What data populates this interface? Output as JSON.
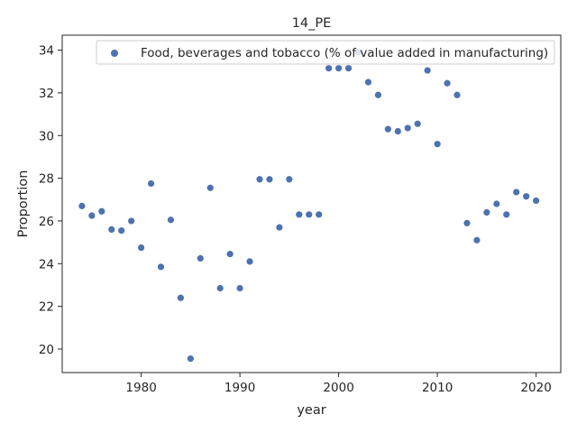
{
  "chart_data": {
    "type": "scatter",
    "title": "14_PE",
    "xlabel": "year",
    "ylabel": "Proportion",
    "xlim": [
      1972,
      2022.5
    ],
    "ylim": [
      18.9,
      34.7
    ],
    "xticks": [
      1980,
      1990,
      2000,
      2010,
      2020
    ],
    "yticks": [
      20,
      22,
      24,
      26,
      28,
      30,
      32,
      34
    ],
    "grid": false,
    "legend_position": "top-right",
    "series": [
      {
        "name": "Food, beverages and tobacco (% of value added in manufacturing)",
        "color": "#4c72b0",
        "x": [
          1974,
          1975,
          1976,
          1977,
          1978,
          1979,
          1980,
          1981,
          1982,
          1983,
          1984,
          1985,
          1986,
          1987,
          1988,
          1989,
          1990,
          1991,
          1992,
          1993,
          1994,
          1995,
          1996,
          1997,
          1998,
          1999,
          2000,
          2001,
          2002,
          2003,
          2004,
          2005,
          2006,
          2007,
          2008,
          2009,
          2010,
          2011,
          2012,
          2013,
          2014,
          2015,
          2016,
          2017,
          2018,
          2019,
          2020
        ],
        "y": [
          26.7,
          26.25,
          26.45,
          25.6,
          25.55,
          26.0,
          24.75,
          27.75,
          23.85,
          26.05,
          22.4,
          19.55,
          24.25,
          27.55,
          22.85,
          24.45,
          22.85,
          24.1,
          27.95,
          27.95,
          25.7,
          27.95,
          26.3,
          26.3,
          26.3,
          33.15,
          33.15,
          33.15,
          33.9,
          32.5,
          31.9,
          30.3,
          30.2,
          30.35,
          30.55,
          33.05,
          29.6,
          32.45,
          31.9,
          25.9,
          25.1,
          26.4,
          26.8,
          26.3,
          27.35,
          27.15,
          26.95
        ]
      }
    ]
  }
}
